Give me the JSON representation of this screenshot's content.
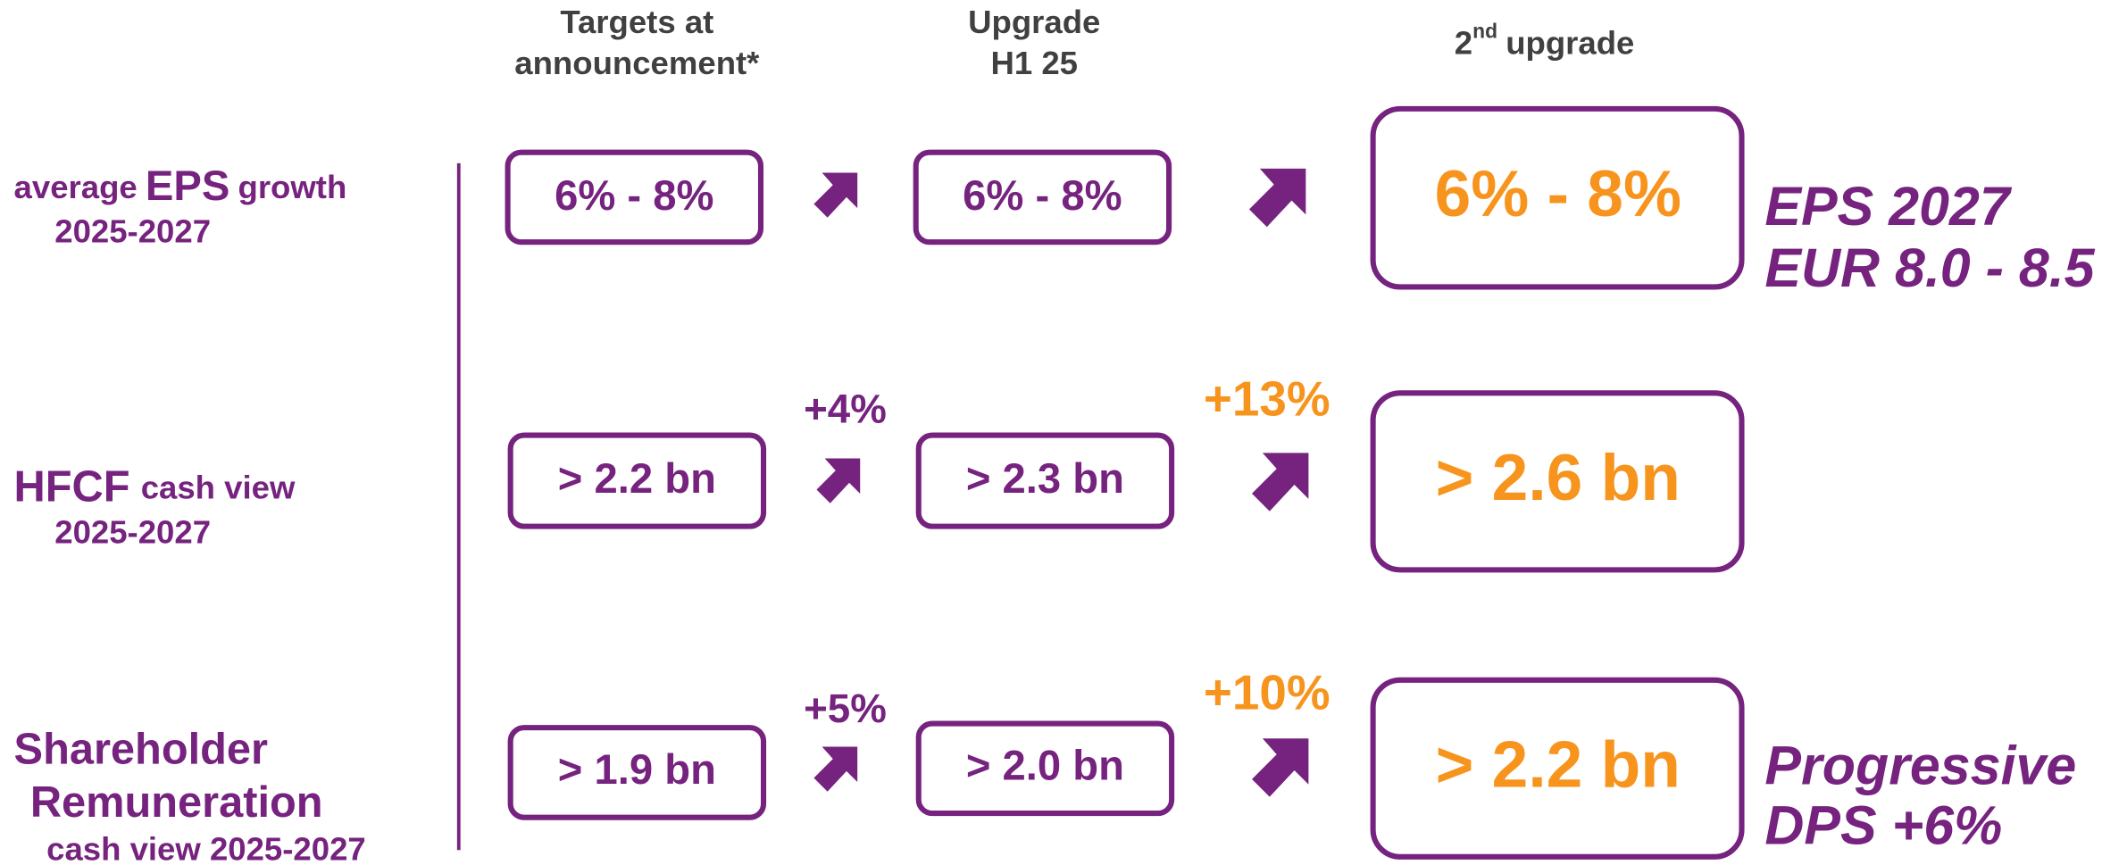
{
  "headers": [
    {
      "lines": [
        "Targets at",
        "announcement*"
      ]
    },
    {
      "lines": [
        "Upgrade",
        "H1 25"
      ]
    },
    {
      "pre": "2",
      "sup": "nd",
      "post": "upgrade"
    }
  ],
  "rows": [
    {
      "label": {
        "pre": "average",
        "key": "EPS",
        "post": "growth",
        "sub": "2025-2027"
      },
      "values": [
        "6% - 8%",
        "6% - 8%",
        "6% - 8%"
      ],
      "note": [
        "EPS 2027",
        "EUR 8.0 - 8.5"
      ]
    },
    {
      "label": {
        "key": "HFCF",
        "post": "cash view",
        "sub": "2025-2027"
      },
      "values": [
        "> 2.2 bn",
        "> 2.3 bn",
        "> 2.6 bn"
      ],
      "increments": [
        "+4%",
        "+13%"
      ]
    },
    {
      "label": {
        "lines": [
          "Shareholder",
          "Remuneration"
        ],
        "sub": "cash view 2025-2027"
      },
      "values": [
        "> 1.9 bn",
        "> 2.0 bn",
        "> 2.2 bn"
      ],
      "increments": [
        "+5%",
        "+10%"
      ],
      "note": [
        "Progressive",
        "DPS +6%"
      ]
    }
  ]
}
